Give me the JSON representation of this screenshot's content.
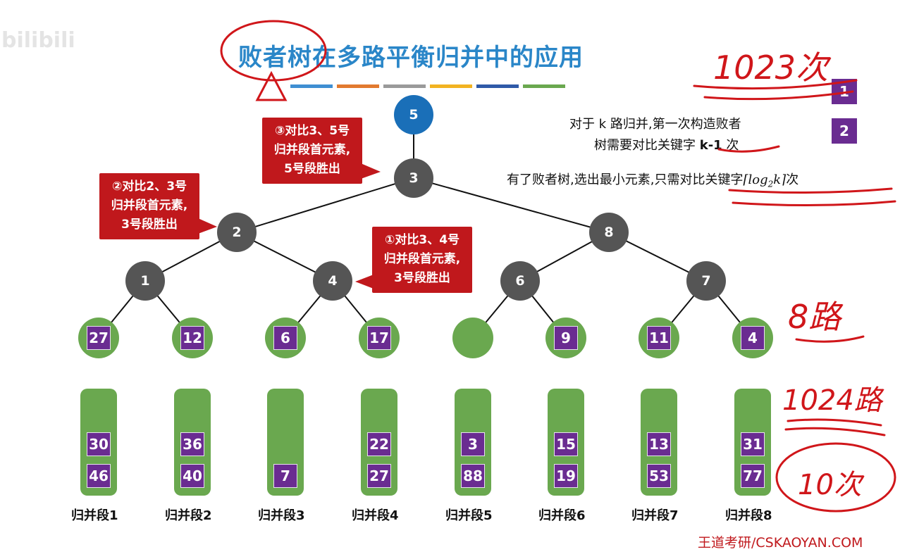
{
  "watermark": "bilibili",
  "title": "败者树在多路平衡归并中的应用",
  "color_bars": [
    "#3f8fd2",
    "#e27a2f",
    "#9a9a9a",
    "#f2b321",
    "#2f5aa8",
    "#6aa84f"
  ],
  "tree": {
    "root": "5",
    "internal": [
      "3",
      "2",
      "8",
      "1",
      "4",
      "6",
      "7"
    ]
  },
  "leaves": [
    "27",
    "12",
    "6",
    "17",
    "",
    "9",
    "11",
    "4"
  ],
  "segments": [
    {
      "label": "归并段1",
      "values": [
        "30",
        "46"
      ]
    },
    {
      "label": "归并段2",
      "values": [
        "36",
        "40"
      ]
    },
    {
      "label": "归并段3",
      "values": [
        "7"
      ]
    },
    {
      "label": "归并段4",
      "values": [
        "22",
        "27"
      ]
    },
    {
      "label": "归并段5",
      "values": [
        "3",
        "88"
      ]
    },
    {
      "label": "归并段6",
      "values": [
        "15",
        "19"
      ]
    },
    {
      "label": "归并段7",
      "values": [
        "13",
        "53"
      ]
    },
    {
      "label": "归并段8",
      "values": [
        "31",
        "77"
      ]
    }
  ],
  "callouts": {
    "c3": [
      "③对比3、5号",
      "归并段首元素,",
      "5号段胜出"
    ],
    "c2": [
      "②对比2、3号",
      "归并段首元素,",
      "3号段胜出"
    ],
    "c1": [
      "①对比3、4号",
      "归并段首元素,",
      "3号段胜出"
    ]
  },
  "notes": {
    "line1": "对于 k 路归并,第一次构造败者",
    "line2_pre": "树需要对比关键字 ",
    "line2_bold": "k-1",
    "line2_post": " 次",
    "line3_pre": "有了败者树,选出最小元素,只需对比关键字",
    "line3_formula_log": "log",
    "line3_formula_sub": "2",
    "line3_formula_k": "k",
    "line3_post": "次"
  },
  "legend": [
    "1",
    "2"
  ],
  "handwriting": {
    "a1": "1023次",
    "a2": "8路",
    "a3": "1024路",
    "a4": "10次"
  },
  "brand": "王道考研/CSKAOYAN.COM"
}
